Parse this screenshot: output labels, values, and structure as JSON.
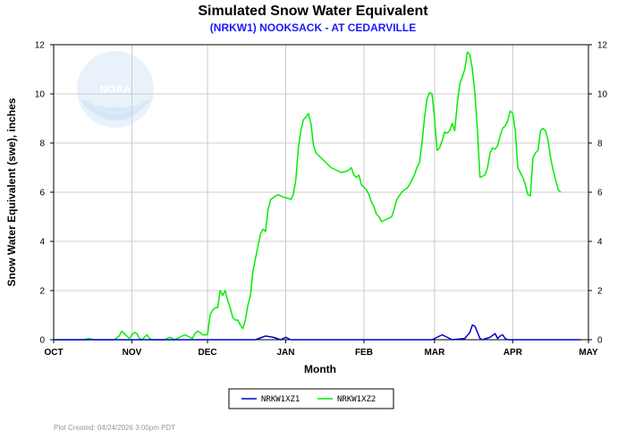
{
  "chart_data": {
    "type": "line",
    "title": "Simulated Snow Water Equivalent",
    "subtitle": "(NRKW1) NOOKSACK - AT CEDARVILLE",
    "xlabel": "Month",
    "ylabel": "Snow Water Equivalent (swe),  inches",
    "x_ticks": [
      "OCT",
      "NOV",
      "DEC",
      "JAN",
      "FEB",
      "MAR",
      "APR",
      "MAY"
    ],
    "ylim": [
      0,
      12
    ],
    "y_ticks": [
      "0",
      "2",
      "4",
      "6",
      "8",
      "10",
      "12"
    ],
    "grid": true,
    "legend_position": "bottom-center",
    "logo_text": "NOAA",
    "footer": "Plot Created: 04/24/2026 3:00pm PDT",
    "series": [
      {
        "name": "NRKW1XZ1",
        "color": "#0000cc",
        "points": [
          [
            0,
            0
          ],
          [
            80,
            0
          ],
          [
            84,
            0.15
          ],
          [
            87,
            0.1
          ],
          [
            90,
            0
          ],
          [
            92,
            0.1
          ],
          [
            94,
            0
          ],
          [
            150,
            0
          ],
          [
            152,
            0.1
          ],
          [
            154,
            0.2
          ],
          [
            156,
            0.1
          ],
          [
            158,
            0
          ],
          [
            163,
            0.05
          ],
          [
            165,
            0.3
          ],
          [
            166,
            0.6
          ],
          [
            167,
            0.55
          ],
          [
            168,
            0.3
          ],
          [
            169,
            0.05
          ],
          [
            170,
            0
          ],
          [
            173,
            0.1
          ],
          [
            175,
            0.25
          ],
          [
            176,
            0.05
          ],
          [
            177,
            0.15
          ],
          [
            178,
            0.2
          ],
          [
            179,
            0.05
          ],
          [
            180,
            0
          ],
          [
            209,
            0
          ]
        ]
      },
      {
        "name": "NRKW1XZ2",
        "color": "#00ee00",
        "points": [
          [
            0,
            0
          ],
          [
            12,
            0
          ],
          [
            14,
            0.05
          ],
          [
            16,
            0
          ],
          [
            24,
            0
          ],
          [
            26,
            0.15
          ],
          [
            27,
            0.35
          ],
          [
            28,
            0.25
          ],
          [
            30,
            0.05
          ],
          [
            31,
            0.2
          ],
          [
            32,
            0.3
          ],
          [
            33,
            0.25
          ],
          [
            34,
            0.05
          ],
          [
            35,
            0
          ],
          [
            36,
            0.1
          ],
          [
            37,
            0.2
          ],
          [
            38,
            0.05
          ],
          [
            39,
            0
          ],
          [
            44,
            0
          ],
          [
            46,
            0.1
          ],
          [
            48,
            0
          ],
          [
            50,
            0.1
          ],
          [
            52,
            0.2
          ],
          [
            53,
            0.15
          ],
          [
            55,
            0.05
          ],
          [
            56,
            0.25
          ],
          [
            57,
            0.35
          ],
          [
            58,
            0.3
          ],
          [
            59,
            0.2
          ],
          [
            60,
            0.2
          ],
          [
            61,
            0.2
          ],
          [
            62,
            1.0
          ],
          [
            63,
            1.2
          ],
          [
            64,
            1.3
          ],
          [
            65,
            1.3
          ],
          [
            66,
            2.0
          ],
          [
            67,
            1.8
          ],
          [
            68,
            2.0
          ],
          [
            69,
            1.6
          ],
          [
            70,
            1.3
          ],
          [
            71,
            0.9
          ],
          [
            72,
            0.8
          ],
          [
            73,
            0.8
          ],
          [
            74,
            0.6
          ],
          [
            75,
            0.45
          ],
          [
            76,
            0.8
          ],
          [
            77,
            1.4
          ],
          [
            78,
            1.8
          ],
          [
            79,
            2.8
          ],
          [
            80,
            3.3
          ],
          [
            81,
            3.8
          ],
          [
            82,
            4.3
          ],
          [
            83,
            4.5
          ],
          [
            84,
            4.4
          ],
          [
            85,
            5.3
          ],
          [
            86,
            5.7
          ],
          [
            88,
            5.85
          ],
          [
            89,
            5.9
          ],
          [
            90,
            5.85
          ],
          [
            91,
            5.8
          ],
          [
            93,
            5.75
          ],
          [
            94,
            5.7
          ],
          [
            95,
            5.9
          ],
          [
            96,
            6.5
          ],
          [
            97,
            7.8
          ],
          [
            98,
            8.5
          ],
          [
            99,
            8.95
          ],
          [
            100,
            9.05
          ],
          [
            101,
            9.2
          ],
          [
            102,
            8.8
          ],
          [
            103,
            7.9
          ],
          [
            104,
            7.6
          ],
          [
            106,
            7.4
          ],
          [
            108,
            7.2
          ],
          [
            110,
            7.0
          ],
          [
            112,
            6.9
          ],
          [
            114,
            6.8
          ],
          [
            116,
            6.85
          ],
          [
            117,
            6.9
          ],
          [
            118,
            7.0
          ],
          [
            119,
            6.7
          ],
          [
            120,
            6.6
          ],
          [
            121,
            6.7
          ],
          [
            122,
            6.3
          ],
          [
            123,
            6.2
          ],
          [
            124,
            6.1
          ],
          [
            125,
            5.9
          ],
          [
            126,
            5.6
          ],
          [
            127,
            5.4
          ],
          [
            128,
            5.1
          ],
          [
            129,
            5.0
          ],
          [
            130,
            4.8
          ],
          [
            131,
            4.85
          ],
          [
            132,
            4.9
          ],
          [
            133,
            4.95
          ],
          [
            134,
            5.0
          ],
          [
            135,
            5.3
          ],
          [
            136,
            5.7
          ],
          [
            137,
            5.85
          ],
          [
            138,
            6.0
          ],
          [
            139,
            6.1
          ],
          [
            140,
            6.15
          ],
          [
            141,
            6.3
          ],
          [
            142,
            6.5
          ],
          [
            143,
            6.7
          ],
          [
            144,
            7.0
          ],
          [
            145,
            7.2
          ],
          [
            146,
            8.0
          ],
          [
            147,
            9.0
          ],
          [
            148,
            9.8
          ],
          [
            149,
            10.05
          ],
          [
            150,
            10.0
          ],
          [
            151,
            9.0
          ],
          [
            152,
            7.7
          ],
          [
            153,
            7.8
          ],
          [
            154,
            8.1
          ],
          [
            155,
            8.45
          ],
          [
            156,
            8.4
          ],
          [
            157,
            8.5
          ],
          [
            158,
            8.8
          ],
          [
            159,
            8.5
          ],
          [
            160,
            9.6
          ],
          [
            161,
            10.4
          ],
          [
            162,
            10.7
          ],
          [
            163,
            11.0
          ],
          [
            164,
            11.7
          ],
          [
            165,
            11.6
          ],
          [
            166,
            11.0
          ],
          [
            167,
            10.0
          ],
          [
            168,
            8.5
          ],
          [
            169,
            6.6
          ],
          [
            170,
            6.65
          ],
          [
            171,
            6.7
          ],
          [
            172,
            7.0
          ],
          [
            173,
            7.6
          ],
          [
            174,
            7.8
          ],
          [
            175,
            7.75
          ],
          [
            176,
            7.9
          ],
          [
            177,
            8.3
          ],
          [
            178,
            8.6
          ],
          [
            179,
            8.7
          ],
          [
            180,
            8.9
          ],
          [
            181,
            9.3
          ],
          [
            182,
            9.2
          ],
          [
            183,
            8.5
          ],
          [
            184,
            7.0
          ],
          [
            185,
            6.8
          ],
          [
            186,
            6.6
          ],
          [
            187,
            6.3
          ],
          [
            188,
            5.9
          ],
          [
            189,
            5.85
          ],
          [
            190,
            7.4
          ],
          [
            191,
            7.6
          ],
          [
            192,
            7.7
          ],
          [
            193,
            8.5
          ],
          [
            194,
            8.6
          ],
          [
            195,
            8.5
          ],
          [
            196,
            8.1
          ],
          [
            197,
            7.4
          ],
          [
            198,
            6.9
          ],
          [
            199,
            6.5
          ],
          [
            200,
            6.1
          ],
          [
            201,
            6.0
          ]
        ]
      }
    ]
  }
}
